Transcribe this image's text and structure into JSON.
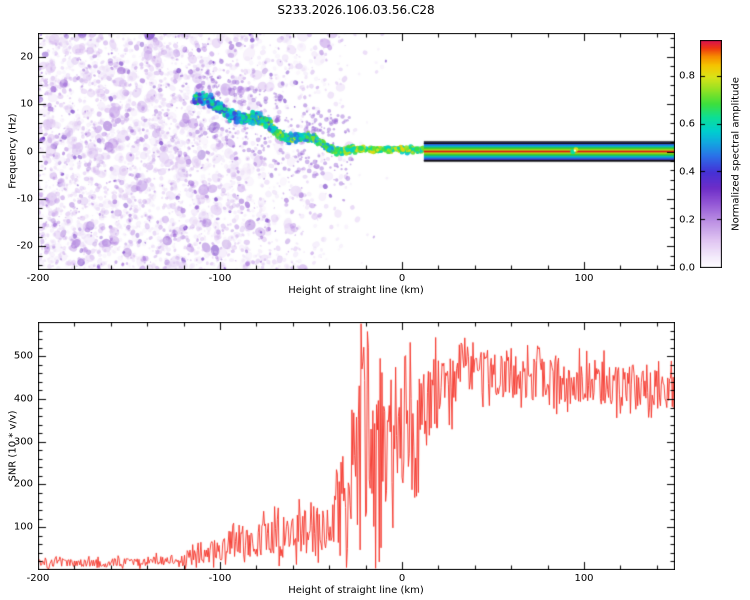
{
  "title": "S233.2026.106.03.56.C28",
  "chart_data": [
    {
      "type": "heatmap",
      "title": "S233.2026.106.03.56.C28",
      "xlabel": "Height of straight line (km)",
      "ylabel": "Frequency (Hz)",
      "xlim": [
        -200,
        150
      ],
      "ylim": [
        -25,
        25
      ],
      "x_ticks": [
        -200,
        -100,
        0,
        100
      ],
      "y_ticks": [
        -20,
        -10,
        0,
        10,
        20
      ],
      "grid": false,
      "colorbar": {
        "label": "Normalized spectral amplitude",
        "ticks": [
          0.0,
          0.2,
          0.4,
          0.6,
          0.8
        ],
        "range": [
          0,
          0.95
        ],
        "stops": [
          {
            "t": 0.0,
            "c": "#ffffff"
          },
          {
            "t": 0.05,
            "c": "#f3e9fb"
          },
          {
            "t": 0.12,
            "c": "#e0c4f2"
          },
          {
            "t": 0.2,
            "c": "#bd92e4"
          },
          {
            "t": 0.28,
            "c": "#9458d6"
          },
          {
            "t": 0.35,
            "c": "#6d2dc8"
          },
          {
            "t": 0.42,
            "c": "#4531d6"
          },
          {
            "t": 0.49,
            "c": "#2b70e8"
          },
          {
            "t": 0.55,
            "c": "#12a8e0"
          },
          {
            "t": 0.6,
            "c": "#00cfcf"
          },
          {
            "t": 0.66,
            "c": "#0cdf96"
          },
          {
            "t": 0.72,
            "c": "#3ddf3d"
          },
          {
            "t": 0.78,
            "c": "#90e224"
          },
          {
            "t": 0.84,
            "c": "#dce318"
          },
          {
            "t": 0.89,
            "c": "#f5c400"
          },
          {
            "t": 0.93,
            "c": "#f68a00"
          },
          {
            "t": 0.965,
            "c": "#ee3810"
          },
          {
            "t": 1.0,
            "c": "#d81050"
          }
        ]
      },
      "features": {
        "noise_region": {
          "x_range": [
            -200,
            -8
          ],
          "dense_until_km": -115,
          "fade_to_km": -30,
          "amplitude": [
            0.0,
            0.25
          ],
          "description": "speckled low-amplitude purple noise filling the left half, fading toward 0 km"
        },
        "descending_trace": {
          "points": [
            [
              -114,
              11
            ],
            [
              -104,
              9.6
            ],
            [
              -94,
              8.4
            ],
            [
              -84,
              6.8
            ],
            [
              -74,
              5.4
            ],
            [
              -64,
              3.8
            ],
            [
              -54,
              2.6
            ],
            [
              -44,
              1.4
            ],
            [
              -34,
              0.7
            ],
            [
              -27,
              0.4
            ]
          ],
          "amplitude": [
            0.3,
            0.8
          ],
          "description": "blue-cyan-green trace descending from ~11 Hz at -114 km to ~0 Hz near -27 km"
        },
        "green_tail": {
          "x_range": [
            -30,
            16
          ],
          "frequency": 0.4,
          "amplitude": [
            0.55,
            0.85
          ]
        },
        "echo_line": {
          "x_range": [
            12,
            150
          ],
          "frequency": 0,
          "half_width_hz": 1.8,
          "amplitude": [
            0.8,
            1.0
          ],
          "profile": [
            [
              0,
              "#ffffff"
            ],
            [
              0.07,
              "#14141a"
            ],
            [
              0.16,
              "#4040d8"
            ],
            [
              0.26,
              "#00b4dc"
            ],
            [
              0.35,
              "#2cc82c"
            ],
            [
              0.43,
              "#b4dc14"
            ],
            [
              0.5,
              "#dc1414"
            ],
            [
              0.57,
              "#b4dc14"
            ],
            [
              0.65,
              "#2cc82c"
            ],
            [
              0.74,
              "#00b4dc"
            ],
            [
              0.84,
              "#4040d8"
            ],
            [
              0.93,
              "#14141a"
            ],
            [
              1,
              "#ffffff"
            ]
          ],
          "description": "narrow saturated echo centered at 0 Hz from ~12 km to 150 km, bounded by thin dark lines"
        },
        "bright_spot": {
          "x": 95,
          "frequency": 0.2
        }
      },
      "seed": 1337
    },
    {
      "type": "line",
      "xlabel": "Height of straight line (km)",
      "ylabel": "SNR (10 * v/v)",
      "xlim": [
        -200,
        150
      ],
      "ylim": [
        0,
        580
      ],
      "x_ticks": [
        -200,
        -100,
        0,
        100
      ],
      "y_ticks": [
        100,
        200,
        300,
        400,
        500
      ],
      "grid": false,
      "line_color": "#f53126",
      "envelope": [
        [
          -200,
          16,
          12
        ],
        [
          -150,
          18,
          13
        ],
        [
          -128,
          24,
          18
        ],
        [
          -112,
          34,
          26
        ],
        [
          -100,
          48,
          36
        ],
        [
          -88,
          62,
          48
        ],
        [
          -76,
          72,
          56
        ],
        [
          -64,
          82,
          62
        ],
        [
          -52,
          92,
          72
        ],
        [
          -42,
          104,
          82
        ],
        [
          -34,
          128,
          100
        ],
        [
          -28,
          170,
          140
        ],
        [
          -25,
          260,
          230
        ],
        [
          -22,
          330,
          290
        ],
        [
          -19,
          300,
          270
        ],
        [
          -15,
          260,
          220
        ],
        [
          -10,
          270,
          200
        ],
        [
          -5,
          290,
          185
        ],
        [
          0,
          315,
          175
        ],
        [
          6,
          335,
          160
        ],
        [
          12,
          365,
          140
        ],
        [
          18,
          395,
          120
        ],
        [
          25,
          425,
          95
        ],
        [
          32,
          448,
          78
        ],
        [
          42,
          452,
          68
        ],
        [
          55,
          448,
          66
        ],
        [
          70,
          442,
          68
        ],
        [
          85,
          440,
          66
        ],
        [
          100,
          436,
          68
        ],
        [
          115,
          430,
          66
        ],
        [
          130,
          425,
          64
        ],
        [
          150,
          416,
          58
        ]
      ],
      "spikes": [
        [
          -22.4,
          574
        ],
        [
          -20.9,
          547
        ],
        [
          36,
          522
        ],
        [
          47,
          514
        ]
      ],
      "seed": 4242,
      "description": "noisy red SNR profile: ~20 below -130 km, turbulent rise with a ~575 spike near -22 km, plateau ~420-460 above 30 km"
    }
  ]
}
